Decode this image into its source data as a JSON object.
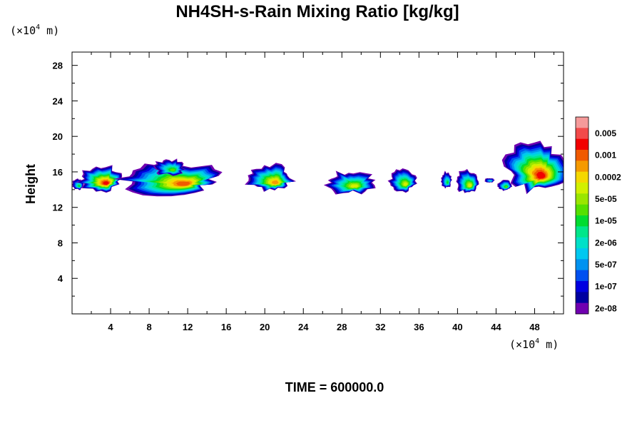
{
  "chart_data": {
    "type": "heatmap",
    "title": "NH4SH-s-Rain Mixing Ratio [kg/kg]",
    "ylabel": "Height",
    "x_unit": {
      "prefix": "(×10",
      "exp": "4",
      "suffix": " m)"
    },
    "y_unit": {
      "prefix": "(×10",
      "exp": "4",
      "suffix": " m)"
    },
    "xlim": [
      0,
      51
    ],
    "ylim": [
      0,
      29.5
    ],
    "x_ticks": [
      "4",
      "8",
      "12",
      "16",
      "20",
      "24",
      "28",
      "32",
      "36",
      "40",
      "44",
      "48"
    ],
    "x_tick_values": [
      4,
      8,
      12,
      16,
      20,
      24,
      28,
      32,
      36,
      40,
      44,
      48
    ],
    "y_ticks": [
      "4",
      "8",
      "12",
      "16",
      "20",
      "24",
      "28"
    ],
    "y_tick_values": [
      4,
      8,
      12,
      16,
      20,
      24,
      28
    ],
    "minor_x_tick_values": [
      2,
      6,
      10,
      14,
      18,
      22,
      26,
      30,
      34,
      38,
      42,
      46,
      50
    ],
    "minor_y_tick_values": [
      2,
      6,
      10,
      14,
      18,
      22,
      26
    ],
    "colorbar": {
      "colors": [
        "#f59a9a",
        "#f24a4a",
        "#f20000",
        "#f05a00",
        "#f59a00",
        "#f5d800",
        "#d2f000",
        "#9ae600",
        "#55e000",
        "#00dc30",
        "#00e68a",
        "#00e0c8",
        "#00c8f0",
        "#0092f0",
        "#0050f0",
        "#0000e0",
        "#0000a0",
        "#7000b0"
      ],
      "labels": [
        "0.005",
        "0.001",
        "0.0002",
        "5e-05",
        "1e-05",
        "2e-06",
        "5e-07",
        "1e-07",
        "2e-08"
      ]
    },
    "cells": [
      {
        "x": [
          0.0,
          1.2
        ],
        "y": [
          14.0,
          15.2
        ],
        "level": 0.45,
        "rough": 0.3
      },
      {
        "x": [
          0.8,
          5.2
        ],
        "y": [
          13.8,
          16.6
        ],
        "level": 0.88,
        "rough": 0.5
      },
      {
        "x": [
          5.0,
          15.6
        ],
        "y": [
          13.6,
          16.8
        ],
        "level": 0.85,
        "rough": 0.6
      },
      {
        "x": [
          8.6,
          11.6
        ],
        "y": [
          15.6,
          17.4
        ],
        "level": 0.55,
        "rough": 0.5
      },
      {
        "x": [
          18.0,
          23.0
        ],
        "y": [
          13.8,
          16.8
        ],
        "level": 0.78,
        "rough": 0.5
      },
      {
        "x": [
          26.2,
          31.2
        ],
        "y": [
          13.6,
          16.0
        ],
        "level": 0.62,
        "rough": 0.6
      },
      {
        "x": [
          33.0,
          35.6
        ],
        "y": [
          13.8,
          16.2
        ],
        "level": 0.65,
        "rough": 0.4
      },
      {
        "x": [
          38.3,
          39.4
        ],
        "y": [
          14.2,
          16.0
        ],
        "level": 0.45,
        "rough": 0.4
      },
      {
        "x": [
          39.8,
          42.2
        ],
        "y": [
          13.6,
          16.2
        ],
        "level": 0.62,
        "rough": 0.4
      },
      {
        "x": [
          42.8,
          43.8
        ],
        "y": [
          14.8,
          15.3
        ],
        "level": 0.35,
        "rough": 0.3
      },
      {
        "x": [
          44.2,
          45.6
        ],
        "y": [
          13.9,
          15.1
        ],
        "level": 0.5,
        "rough": 0.3
      },
      {
        "x": [
          44.8,
          51.0
        ],
        "y": [
          13.6,
          19.6
        ],
        "level": 0.9,
        "rough": 0.55
      }
    ]
  },
  "time_label": "TIME = 600000.0"
}
